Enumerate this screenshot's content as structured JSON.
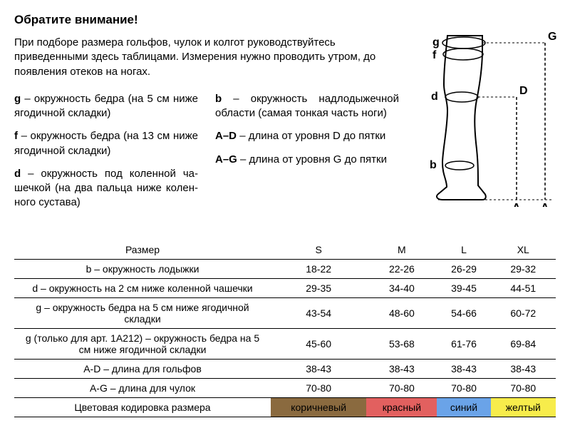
{
  "title": "Обратите внимание!",
  "intro": "При подборе размера гольфов, чулок и колгот руководствуйтесь приведенными здесь таблицами. Измерения нужно проводить утром, до появления отеков на ногах.",
  "definitions": {
    "left": [
      {
        "key": "g",
        "text": "– окружность бедра (на 5 см ниже ягодичной складки)"
      },
      {
        "key": "f",
        "text": "– окружность бедра (на 13 см ниже ягодичной складки)"
      },
      {
        "key": "d",
        "text": "– окружность под коленной ча­шечкой (на два пальца ниже колен­ного сустава)"
      }
    ],
    "right": [
      {
        "key": "b",
        "text": "– окружность надлодыжечной области (самая тонкая часть ноги)"
      },
      {
        "key": "A–D",
        "text": "– длина от уровня D до пятки"
      },
      {
        "key": "A–G",
        "text": "– длина от уровня G до пятки"
      }
    ]
  },
  "diagram": {
    "labels": {
      "g": "g",
      "f": "f",
      "d": "d",
      "b": "b",
      "A1": "A",
      "A2": "A",
      "D": "D",
      "G": "G"
    },
    "stroke": "#000000",
    "fill": "#ffffff",
    "dash": "4,3"
  },
  "table": {
    "header": [
      "Размер",
      "S",
      "M",
      "L",
      "XL"
    ],
    "rows": [
      {
        "label": "b – окружность лодыжки",
        "cells": [
          "18-22",
          "22-26",
          "26-29",
          "29-32"
        ]
      },
      {
        "label": "d – окружность на 2 см ниже коленной чашечки",
        "cells": [
          "29-35",
          "34-40",
          "39-45",
          "44-51"
        ]
      },
      {
        "label": "g – окружность бедра на 5 см ниже ягодичной складки",
        "cells": [
          "43-54",
          "48-60",
          "54-66",
          "60-72"
        ]
      },
      {
        "label": "g (только для арт. 1А212) – окружность бедра на 5 см ниже ягодичной складки",
        "cells": [
          "45-60",
          "53-68",
          "61-76",
          "69-84"
        ]
      },
      {
        "label": "A-D – длина для гольфов",
        "cells": [
          "38-43",
          "38-43",
          "38-43",
          "38-43"
        ]
      },
      {
        "label": "A-G – длина для чулок",
        "cells": [
          "70-80",
          "70-80",
          "70-80",
          "70-80"
        ]
      }
    ],
    "color_row": {
      "label": "Цветовая кодировка размера",
      "cells": [
        {
          "text": "коричневый",
          "bg": "#8a6a3f",
          "fg": "#000000"
        },
        {
          "text": "красный",
          "bg": "#e2605f",
          "fg": "#000000"
        },
        {
          "text": "синий",
          "bg": "#6aa3e8",
          "fg": "#000000"
        },
        {
          "text": "желтый",
          "bg": "#f7ec4b",
          "fg": "#000000"
        }
      ]
    }
  }
}
